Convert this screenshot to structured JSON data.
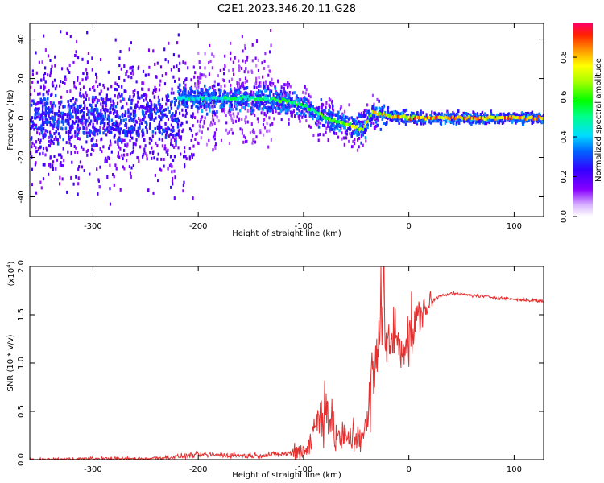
{
  "title": "C2E1.2023.346.20.11.G28",
  "colors": {
    "signal": "#e53030",
    "axis": "#000000"
  },
  "chart_data": [
    {
      "type": "heatmap",
      "xlabel": "Height of straight line (km)",
      "ylabel": "Frequency (Hz)",
      "xlim": [
        -360,
        128
      ],
      "ylim": [
        -50,
        48
      ],
      "xticks": [
        -300,
        -200,
        -100,
        0,
        100
      ],
      "yticks": [
        -40,
        -20,
        0,
        20,
        40
      ],
      "colorbar": {
        "label": "Normalized spectral amplitude",
        "ticks": [
          "0.0",
          "0.2",
          "0.4",
          "0.6",
          "0.8"
        ],
        "range": [
          0,
          0.97
        ],
        "colormap": "rainbow (purple-blue-cyan-green-yellow-red)"
      },
      "ridge": {
        "description": "dominant frequency track",
        "x": [
          -220,
          -200,
          -150,
          -120,
          -100,
          -80,
          -60,
          -45,
          -35,
          -20,
          0,
          50,
          128
        ],
        "freq": [
          10,
          10,
          10,
          9,
          6,
          0,
          -3,
          -6,
          3,
          1,
          0,
          0,
          0
        ],
        "amplitude": [
          0.5,
          0.5,
          0.55,
          0.6,
          0.6,
          0.65,
          0.7,
          0.75,
          0.8,
          0.85,
          0.9,
          0.9,
          0.9
        ]
      }
    },
    {
      "type": "line",
      "xlabel": "Height of straight line (km)",
      "ylabel": "SNR (10 * v/v)",
      "yscale_label": "(x10",
      "yscale_exp": "4",
      "yscale_close": ")",
      "xlim": [
        -360,
        128
      ],
      "ylim": [
        0,
        2.0
      ],
      "xticks": [
        -300,
        -200,
        -100,
        0,
        100
      ],
      "yticks": [
        "0.0",
        "0.5",
        "1.0",
        "1.5",
        "2.0"
      ],
      "series": [
        {
          "color": "#e53030",
          "x": [
            -360,
            -300,
            -250,
            -220,
            -200,
            -180,
            -150,
            -130,
            -110,
            -100,
            -95,
            -90,
            -85,
            -80,
            -70,
            -60,
            -50,
            -40,
            -35,
            -30,
            -26,
            -24,
            -20,
            -15,
            -10,
            -5,
            0,
            10,
            20,
            30,
            40,
            60,
            80,
            100,
            128
          ],
          "y": [
            0.0,
            0.01,
            0.01,
            0.03,
            0.05,
            0.05,
            0.04,
            0.05,
            0.07,
            0.1,
            0.15,
            0.3,
            0.45,
            0.6,
            0.25,
            0.2,
            0.25,
            0.3,
            0.8,
            1.0,
            1.6,
            1.35,
            1.1,
            1.3,
            1.25,
            1.2,
            1.25,
            1.5,
            1.62,
            1.7,
            1.72,
            1.7,
            1.68,
            1.66,
            1.64
          ]
        }
      ]
    }
  ]
}
